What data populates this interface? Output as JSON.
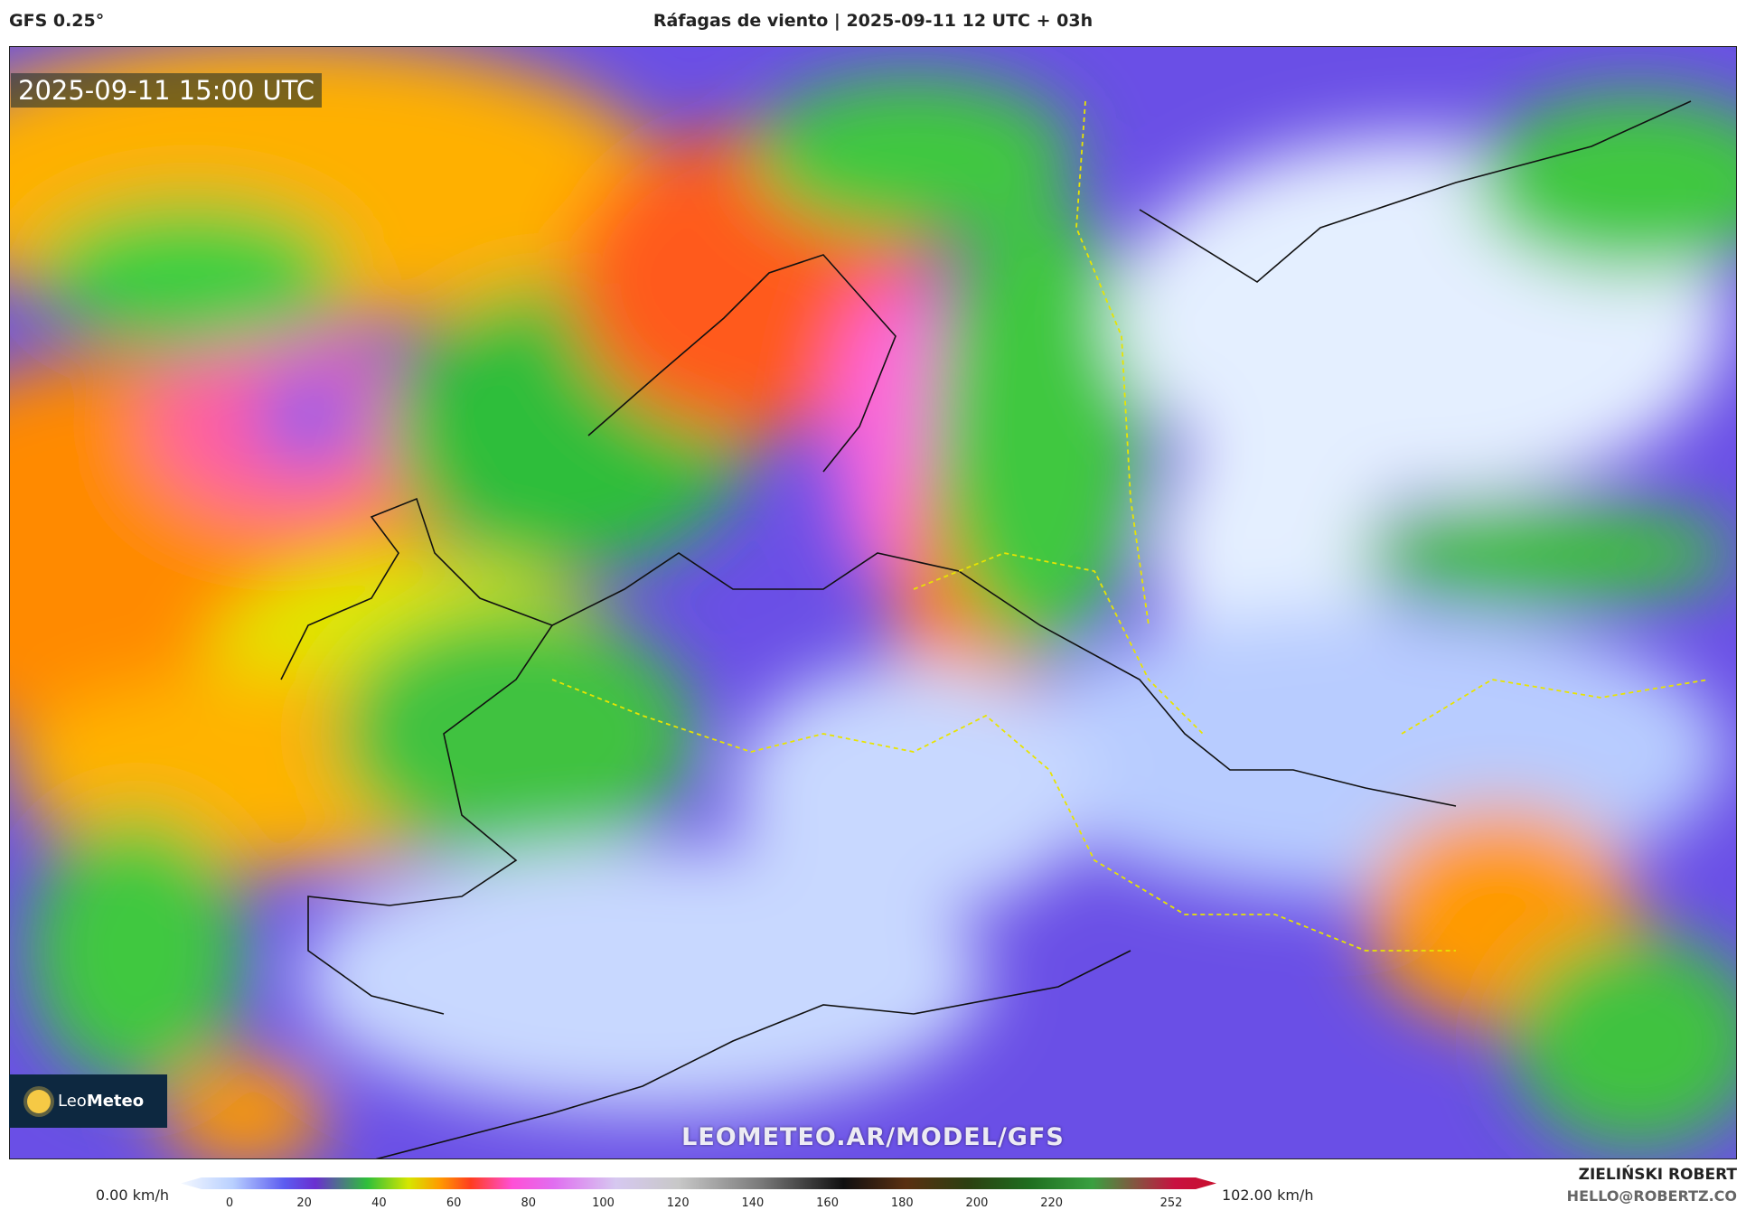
{
  "header": {
    "model": "GFS 0.25°",
    "title": "Ráfagas de viento | 2025-09-11 12 UTC + 03h"
  },
  "map": {
    "timestamp": "2025-09-11 15:00 UTC",
    "watermark": "LEOMETEO.AR/MODEL/GFS",
    "logo": {
      "prefix": "Leo",
      "name": "Meteo"
    }
  },
  "colorbar": {
    "min_label": "0.00 km/h",
    "max_label": "102.00 km/h",
    "ticks": [
      0,
      20,
      40,
      60,
      80,
      100,
      120,
      140,
      160,
      180,
      200,
      220,
      252
    ]
  },
  "footer": {
    "author": "ZIELIŃSKI ROBERT",
    "email": "HELLO@ROBERTZ.CO"
  }
}
